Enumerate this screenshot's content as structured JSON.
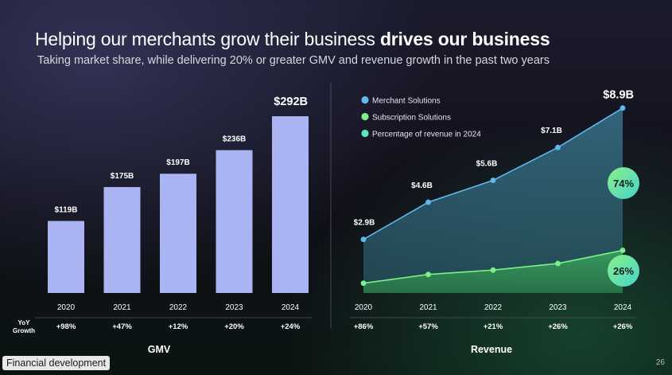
{
  "header": {
    "title_regular": "Helping our merchants grow their business ",
    "title_bold": "drives our business",
    "subtitle": "Taking market share, while delivering 20% or greater GMV and revenue growth in the past two years"
  },
  "footer": {
    "badge": "Financial development",
    "page_number": "26"
  },
  "yoy_label": [
    "YoY",
    "Growth"
  ],
  "colors": {
    "gmv_bar": "#aab4f2",
    "merchant": "#5db9ee",
    "subscription": "#7cf08a",
    "percentage": "#5ee3b8"
  },
  "chart_data": [
    {
      "type": "bar",
      "xlabel": "GMV",
      "categories": [
        "2020",
        "2021",
        "2022",
        "2023",
        "2024"
      ],
      "values": [
        119,
        175,
        197,
        236,
        292
      ],
      "value_labels": [
        "$119B",
        "$175B",
        "$197B",
        "$236B",
        "$292B"
      ],
      "growth": [
        "+98%",
        "+47%",
        "+12%",
        "+20%",
        "+24%"
      ]
    },
    {
      "type": "area",
      "xlabel": "Revenue",
      "categories": [
        "2020",
        "2021",
        "2022",
        "2023",
        "2024"
      ],
      "legend": [
        "Merchant Solutions",
        "Subscription Solutions",
        "Percentage of revenue in 2024"
      ],
      "total_values": [
        2.9,
        4.6,
        5.6,
        7.1,
        8.9
      ],
      "total_labels": [
        "$2.9B",
        "$4.6B",
        "$5.6B",
        "$7.1B",
        "$8.9B"
      ],
      "subscription_values": [
        0.9,
        1.3,
        1.5,
        1.8,
        2.4
      ],
      "shares_2024": [
        "74%",
        "26%"
      ],
      "growth": [
        "+86%",
        "+57%",
        "+21%",
        "+26%",
        "+26%"
      ]
    }
  ]
}
